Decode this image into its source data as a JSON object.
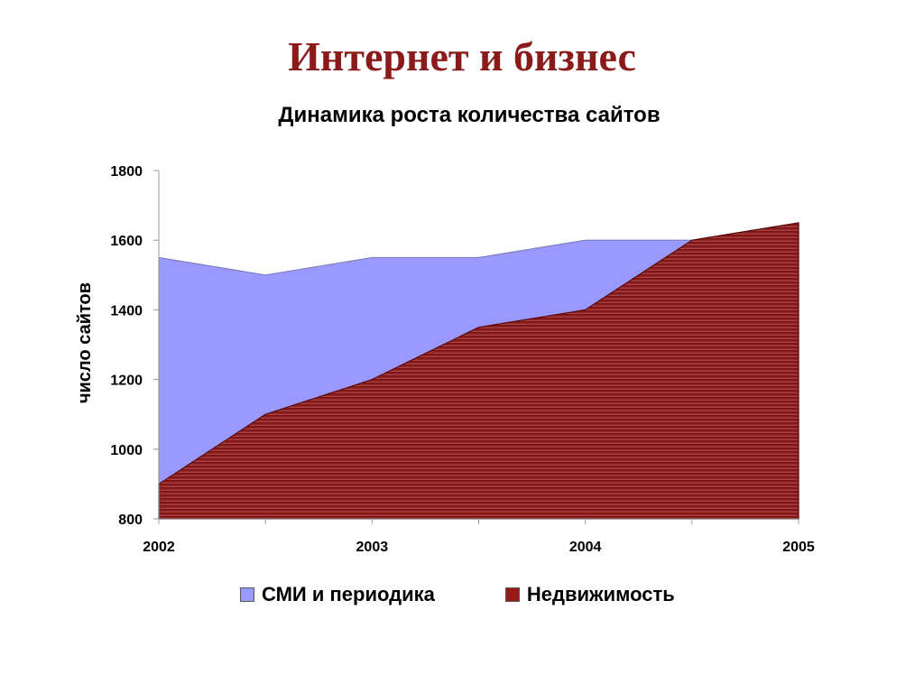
{
  "slide": {
    "title": "Интернет и бизнес"
  },
  "colors": {
    "title": "#8b1a1a",
    "media": "#9999ff",
    "realty": "#9a1a1a"
  },
  "chart_data": {
    "type": "area",
    "title": "Динамика роста количества сайтов",
    "ylabel": "число сайтов",
    "xlabel": "",
    "x": [
      2002,
      2002.5,
      2003,
      2003.5,
      2004,
      2004.5,
      2005
    ],
    "x_ticks": [
      "2002",
      "2003",
      "2004",
      "2005"
    ],
    "ylim": [
      800,
      1800
    ],
    "y_ticks": [
      800,
      1000,
      1200,
      1400,
      1600,
      1800
    ],
    "grid": false,
    "legend_position": "bottom",
    "series": [
      {
        "name": "СМИ и периодика",
        "color": "#9999ff",
        "values": [
          1550,
          1500,
          1550,
          1550,
          1600,
          1600,
          1650
        ]
      },
      {
        "name": "Недвижимость",
        "color": "#9a1a1a",
        "values": [
          900,
          1100,
          1200,
          1350,
          1400,
          1600,
          1650
        ]
      }
    ]
  }
}
